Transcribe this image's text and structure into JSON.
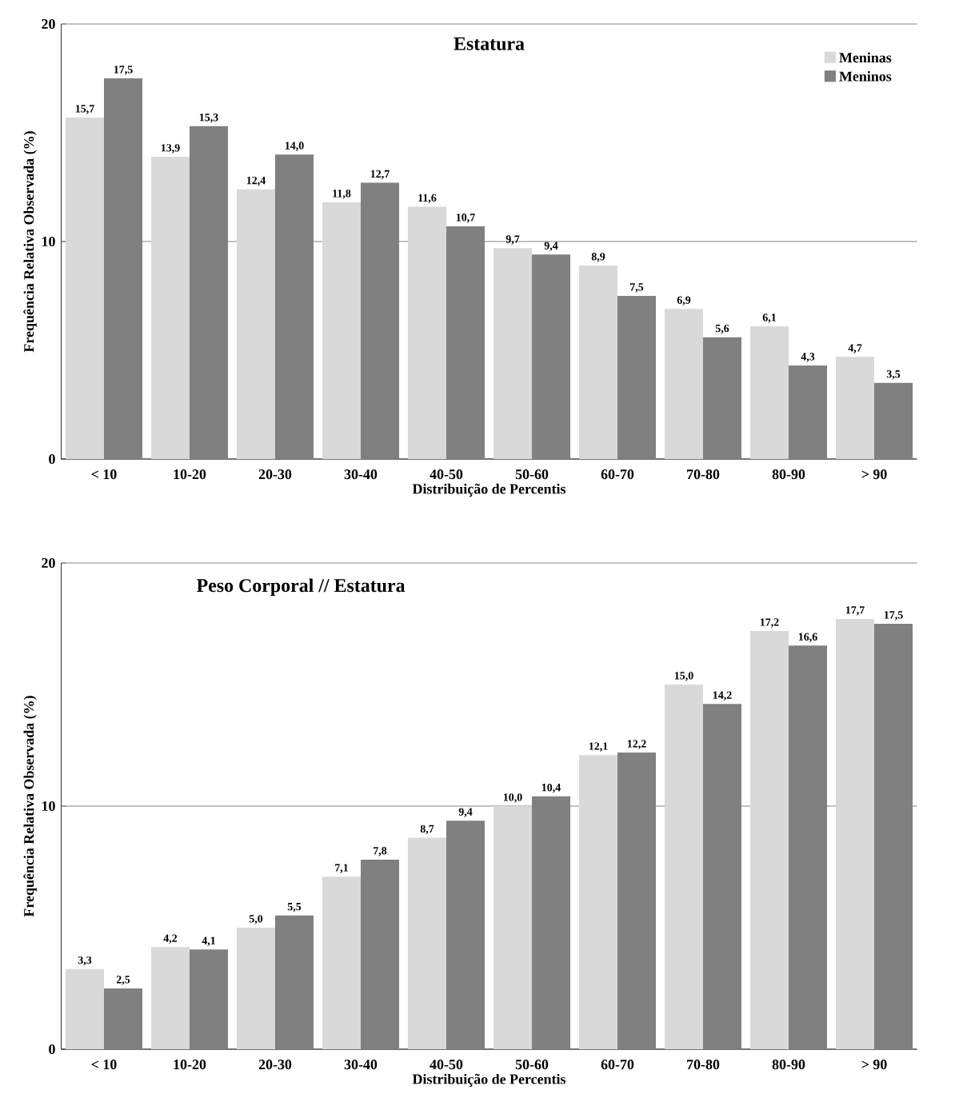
{
  "chart_data": [
    {
      "type": "bar",
      "title": "Estatura",
      "xlabel": "Distribuição de Percentis",
      "ylabel": "Frequência Relativa Observada (%)",
      "categories": [
        "< 10",
        "10-20",
        "20-30",
        "30-40",
        "40-50",
        "50-60",
        "60-70",
        "70-80",
        "80-90",
        "> 90"
      ],
      "series": [
        {
          "name": "Meninas",
          "color": "#d9d9d9",
          "values": [
            15.7,
            13.9,
            12.4,
            11.8,
            11.6,
            9.7,
            8.9,
            6.9,
            6.1,
            4.7
          ],
          "value_labels": [
            "15,7",
            "13,9",
            "12,4",
            "11,8",
            "11,6",
            "9,7",
            "8,9",
            "6,9",
            "6,1",
            "4,7"
          ]
        },
        {
          "name": "Meninos",
          "color": "#808080",
          "values": [
            17.5,
            15.3,
            14.0,
            12.7,
            10.7,
            9.4,
            7.5,
            5.6,
            4.3,
            3.5
          ],
          "value_labels": [
            "17,5",
            "15,3",
            "14,0",
            "12,7",
            "10,7",
            "9,4",
            "7,5",
            "5,6",
            "4,3",
            "3,5"
          ]
        }
      ],
      "ylim": [
        0,
        20
      ],
      "yticks": [
        0,
        10,
        20
      ],
      "grid": "y",
      "legend": "top right"
    },
    {
      "type": "bar",
      "title": "Peso Corporal // Estatura",
      "xlabel": "Distribuição de Percentis",
      "ylabel": "Frequência Relativa Observada (%)",
      "categories": [
        "< 10",
        "10-20",
        "20-30",
        "30-40",
        "40-50",
        "50-60",
        "60-70",
        "70-80",
        "80-90",
        "> 90"
      ],
      "series": [
        {
          "color": "#d9d9d9",
          "values": [
            3.3,
            4.2,
            5.0,
            7.1,
            8.7,
            10.0,
            12.1,
            15.0,
            17.2,
            17.7
          ],
          "value_labels": [
            "3,3",
            "4,2",
            "5,0",
            "7,1",
            "8,7",
            "10,0",
            "12,1",
            "15,0",
            "17,2",
            "17,7"
          ]
        },
        {
          "color": "#808080",
          "values": [
            2.5,
            4.1,
            5.5,
            7.8,
            9.4,
            10.4,
            12.2,
            14.2,
            16.6,
            17.5
          ],
          "value_labels": [
            "2,5",
            "4,1",
            "5,5",
            "7,8",
            "9,4",
            "10,4",
            "12,2",
            "14,2",
            "16,6",
            "17,5"
          ]
        }
      ],
      "ylim": [
        0,
        20
      ],
      "yticks": [
        0,
        10,
        20
      ],
      "grid": "y"
    }
  ]
}
